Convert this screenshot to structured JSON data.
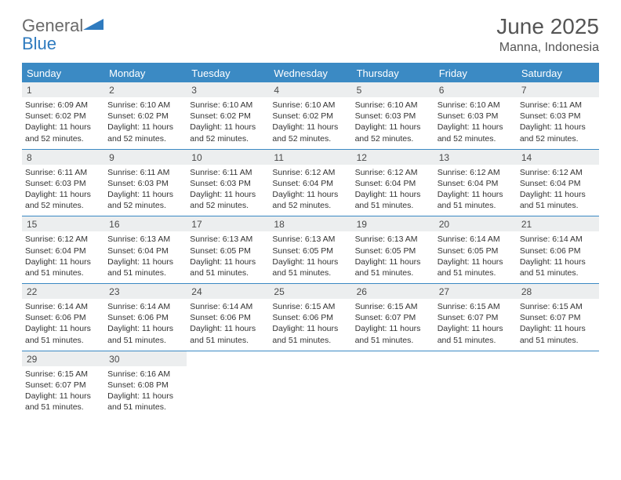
{
  "brand": {
    "word1": "General",
    "word2": "Blue"
  },
  "colors": {
    "accent": "#3b8ac4",
    "header_bg": "#3b8ac4",
    "header_text": "#ffffff",
    "daynum_bg": "#eceeef",
    "text": "#333333",
    "muted": "#555555",
    "logo_gray": "#6a6a6a",
    "logo_blue": "#2f7bbf",
    "page_bg": "#ffffff"
  },
  "title": "June 2025",
  "location": "Manna, Indonesia",
  "weekdays": [
    "Sunday",
    "Monday",
    "Tuesday",
    "Wednesday",
    "Thursday",
    "Friday",
    "Saturday"
  ],
  "weeks": [
    [
      {
        "n": "1",
        "sr": "6:09 AM",
        "ss": "6:02 PM",
        "dl": "11 hours and 52 minutes."
      },
      {
        "n": "2",
        "sr": "6:10 AM",
        "ss": "6:02 PM",
        "dl": "11 hours and 52 minutes."
      },
      {
        "n": "3",
        "sr": "6:10 AM",
        "ss": "6:02 PM",
        "dl": "11 hours and 52 minutes."
      },
      {
        "n": "4",
        "sr": "6:10 AM",
        "ss": "6:02 PM",
        "dl": "11 hours and 52 minutes."
      },
      {
        "n": "5",
        "sr": "6:10 AM",
        "ss": "6:03 PM",
        "dl": "11 hours and 52 minutes."
      },
      {
        "n": "6",
        "sr": "6:10 AM",
        "ss": "6:03 PM",
        "dl": "11 hours and 52 minutes."
      },
      {
        "n": "7",
        "sr": "6:11 AM",
        "ss": "6:03 PM",
        "dl": "11 hours and 52 minutes."
      }
    ],
    [
      {
        "n": "8",
        "sr": "6:11 AM",
        "ss": "6:03 PM",
        "dl": "11 hours and 52 minutes."
      },
      {
        "n": "9",
        "sr": "6:11 AM",
        "ss": "6:03 PM",
        "dl": "11 hours and 52 minutes."
      },
      {
        "n": "10",
        "sr": "6:11 AM",
        "ss": "6:03 PM",
        "dl": "11 hours and 52 minutes."
      },
      {
        "n": "11",
        "sr": "6:12 AM",
        "ss": "6:04 PM",
        "dl": "11 hours and 52 minutes."
      },
      {
        "n": "12",
        "sr": "6:12 AM",
        "ss": "6:04 PM",
        "dl": "11 hours and 51 minutes."
      },
      {
        "n": "13",
        "sr": "6:12 AM",
        "ss": "6:04 PM",
        "dl": "11 hours and 51 minutes."
      },
      {
        "n": "14",
        "sr": "6:12 AM",
        "ss": "6:04 PM",
        "dl": "11 hours and 51 minutes."
      }
    ],
    [
      {
        "n": "15",
        "sr": "6:12 AM",
        "ss": "6:04 PM",
        "dl": "11 hours and 51 minutes."
      },
      {
        "n": "16",
        "sr": "6:13 AM",
        "ss": "6:04 PM",
        "dl": "11 hours and 51 minutes."
      },
      {
        "n": "17",
        "sr": "6:13 AM",
        "ss": "6:05 PM",
        "dl": "11 hours and 51 minutes."
      },
      {
        "n": "18",
        "sr": "6:13 AM",
        "ss": "6:05 PM",
        "dl": "11 hours and 51 minutes."
      },
      {
        "n": "19",
        "sr": "6:13 AM",
        "ss": "6:05 PM",
        "dl": "11 hours and 51 minutes."
      },
      {
        "n": "20",
        "sr": "6:14 AM",
        "ss": "6:05 PM",
        "dl": "11 hours and 51 minutes."
      },
      {
        "n": "21",
        "sr": "6:14 AM",
        "ss": "6:06 PM",
        "dl": "11 hours and 51 minutes."
      }
    ],
    [
      {
        "n": "22",
        "sr": "6:14 AM",
        "ss": "6:06 PM",
        "dl": "11 hours and 51 minutes."
      },
      {
        "n": "23",
        "sr": "6:14 AM",
        "ss": "6:06 PM",
        "dl": "11 hours and 51 minutes."
      },
      {
        "n": "24",
        "sr": "6:14 AM",
        "ss": "6:06 PM",
        "dl": "11 hours and 51 minutes."
      },
      {
        "n": "25",
        "sr": "6:15 AM",
        "ss": "6:06 PM",
        "dl": "11 hours and 51 minutes."
      },
      {
        "n": "26",
        "sr": "6:15 AM",
        "ss": "6:07 PM",
        "dl": "11 hours and 51 minutes."
      },
      {
        "n": "27",
        "sr": "6:15 AM",
        "ss": "6:07 PM",
        "dl": "11 hours and 51 minutes."
      },
      {
        "n": "28",
        "sr": "6:15 AM",
        "ss": "6:07 PM",
        "dl": "11 hours and 51 minutes."
      }
    ],
    [
      {
        "n": "29",
        "sr": "6:15 AM",
        "ss": "6:07 PM",
        "dl": "11 hours and 51 minutes."
      },
      {
        "n": "30",
        "sr": "6:16 AM",
        "ss": "6:08 PM",
        "dl": "11 hours and 51 minutes."
      },
      null,
      null,
      null,
      null,
      null
    ]
  ],
  "labels": {
    "sunrise": "Sunrise: ",
    "sunset": "Sunset: ",
    "daylight": "Daylight: "
  }
}
